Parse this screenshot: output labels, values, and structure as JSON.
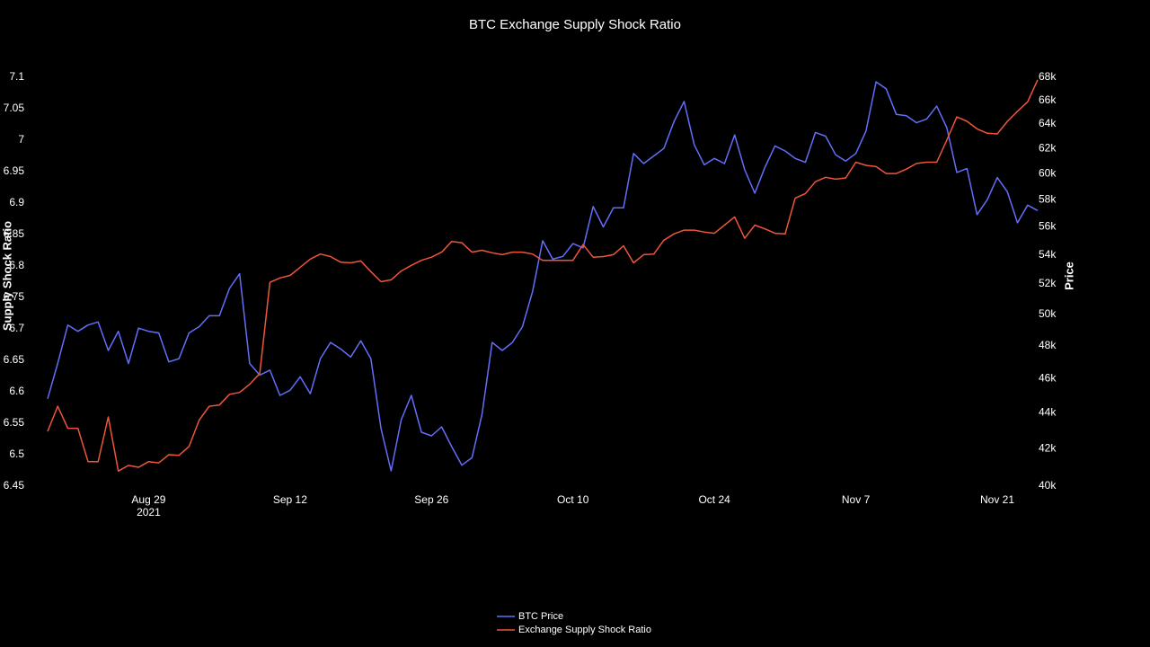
{
  "chart_data": {
    "type": "line",
    "title": "BTC Exchange Supply Shock Ratio",
    "y_label": "Supply Shock Ratio",
    "y2_label": "Price",
    "y2_log": true,
    "legend": "bottom",
    "x": [
      "2021-08-19",
      "2021-08-20",
      "2021-08-21",
      "2021-08-22",
      "2021-08-23",
      "2021-08-24",
      "2021-08-25",
      "2021-08-26",
      "2021-08-27",
      "2021-08-28",
      "2021-08-29",
      "2021-08-30",
      "2021-08-31",
      "2021-09-01",
      "2021-09-02",
      "2021-09-03",
      "2021-09-04",
      "2021-09-05",
      "2021-09-06",
      "2021-09-07",
      "2021-09-08",
      "2021-09-09",
      "2021-09-10",
      "2021-09-11",
      "2021-09-12",
      "2021-09-13",
      "2021-09-14",
      "2021-09-15",
      "2021-09-16",
      "2021-09-17",
      "2021-09-18",
      "2021-09-19",
      "2021-09-20",
      "2021-09-21",
      "2021-09-22",
      "2021-09-23",
      "2021-09-24",
      "2021-09-25",
      "2021-09-26",
      "2021-09-27",
      "2021-09-28",
      "2021-09-29",
      "2021-09-30",
      "2021-10-01",
      "2021-10-02",
      "2021-10-03",
      "2021-10-04",
      "2021-10-05",
      "2021-10-06",
      "2021-10-07",
      "2021-10-08",
      "2021-10-09",
      "2021-10-10",
      "2021-10-11",
      "2021-10-12",
      "2021-10-13",
      "2021-10-14",
      "2021-10-15",
      "2021-10-16",
      "2021-10-17",
      "2021-10-18",
      "2021-10-19",
      "2021-10-20",
      "2021-10-21",
      "2021-10-22",
      "2021-10-23",
      "2021-10-24",
      "2021-10-25",
      "2021-10-26",
      "2021-10-27",
      "2021-10-28",
      "2021-10-29",
      "2021-10-30",
      "2021-10-31",
      "2021-11-01",
      "2021-11-02",
      "2021-11-03",
      "2021-11-04",
      "2021-11-05",
      "2021-11-06",
      "2021-11-07",
      "2021-11-08",
      "2021-11-09",
      "2021-11-10",
      "2021-11-11",
      "2021-11-12",
      "2021-11-13",
      "2021-11-14",
      "2021-11-15",
      "2021-11-16",
      "2021-11-17",
      "2021-11-18",
      "2021-11-19",
      "2021-11-20",
      "2021-11-21",
      "2021-11-22",
      "2021-11-23",
      "2021-11-24",
      "2021-11-25"
    ],
    "xlim": [
      "2021-08-19",
      "2021-11-25"
    ],
    "xticks": [
      {
        "value": "2021-08-29",
        "label": "Aug 29\n2021"
      },
      {
        "value": "2021-09-12",
        "label": "Sep 12"
      },
      {
        "value": "2021-09-26",
        "label": "Sep 26"
      },
      {
        "value": "2021-10-10",
        "label": "Oct 10"
      },
      {
        "value": "2021-10-24",
        "label": "Oct 24"
      },
      {
        "value": "2021-11-07",
        "label": "Nov 7"
      },
      {
        "value": "2021-11-21",
        "label": "Nov 21"
      }
    ],
    "ylim": [
      6.45,
      7.1
    ],
    "yticks": [
      6.45,
      6.5,
      6.55,
      6.6,
      6.65,
      6.7,
      6.75,
      6.8,
      6.85,
      6.9,
      6.95,
      7,
      7.05,
      7.1
    ],
    "y2lim": [
      40000,
      68000
    ],
    "y2ticks": [
      {
        "value": 40000,
        "label": "40k"
      },
      {
        "value": 42000,
        "label": "42k"
      },
      {
        "value": 44000,
        "label": "44k"
      },
      {
        "value": 46000,
        "label": "46k"
      },
      {
        "value": 48000,
        "label": "48k"
      },
      {
        "value": 50000,
        "label": "50k"
      },
      {
        "value": 52000,
        "label": "52k"
      },
      {
        "value": 54000,
        "label": "54k"
      },
      {
        "value": 56000,
        "label": "56k"
      },
      {
        "value": 58000,
        "label": "58k"
      },
      {
        "value": 60000,
        "label": "60k"
      },
      {
        "value": 62000,
        "label": "62k"
      },
      {
        "value": 64000,
        "label": "64k"
      },
      {
        "value": 66000,
        "label": "66k"
      },
      {
        "value": 68000,
        "label": "68k"
      }
    ],
    "series": [
      {
        "name": "BTC Price",
        "color": "#636efa",
        "axis": "y2",
        "values": [
          44800,
          46900,
          49300,
          48900,
          49300,
          49500,
          47700,
          48900,
          46900,
          49100,
          48900,
          48800,
          47000,
          47200,
          48800,
          49200,
          49900,
          49900,
          51700,
          52700,
          46900,
          46200,
          46500,
          45000,
          45300,
          46100,
          45100,
          47200,
          48200,
          47800,
          47300,
          48300,
          47200,
          43100,
          40800,
          43600,
          45000,
          42900,
          42700,
          43200,
          42100,
          41100,
          41500,
          43900,
          48200,
          47700,
          48200,
          49200,
          51500,
          55000,
          53700,
          53900,
          54800,
          54500,
          57500,
          56000,
          57400,
          57400,
          61600,
          60800,
          61400,
          62000,
          64200,
          65900,
          62300,
          60700,
          61200,
          60800,
          63100,
          60300,
          58500,
          60500,
          62200,
          61800,
          61200,
          60900,
          63300,
          63000,
          61500,
          61000,
          61600,
          63400,
          67600,
          67000,
          64800,
          64700,
          64100,
          64400,
          65500,
          63700,
          60100,
          60400,
          56900,
          58000,
          59700,
          58600,
          56300,
          57600,
          57200
        ]
      },
      {
        "name": "Exchange Supply Shock Ratio",
        "color": "#ef553b",
        "values": [
          6.537,
          6.577,
          6.542,
          6.542,
          6.489,
          6.489,
          6.56,
          6.474,
          6.483,
          6.48,
          6.489,
          6.487,
          6.5,
          6.499,
          6.513,
          6.555,
          6.577,
          6.579,
          6.596,
          6.599,
          6.612,
          6.629,
          6.774,
          6.781,
          6.785,
          6.798,
          6.811,
          6.819,
          6.815,
          6.806,
          6.805,
          6.808,
          6.791,
          6.775,
          6.778,
          6.792,
          6.801,
          6.809,
          6.814,
          6.822,
          6.839,
          6.837,
          6.822,
          6.825,
          6.821,
          6.818,
          6.822,
          6.822,
          6.819,
          6.809,
          6.809,
          6.809,
          6.809,
          6.834,
          6.814,
          6.815,
          6.818,
          6.832,
          6.805,
          6.818,
          6.819,
          6.841,
          6.851,
          6.857,
          6.857,
          6.854,
          6.852,
          6.865,
          6.878,
          6.844,
          6.865,
          6.859,
          6.852,
          6.851,
          6.908,
          6.915,
          6.934,
          6.941,
          6.938,
          6.94,
          6.965,
          6.96,
          6.958,
          6.947,
          6.947,
          6.954,
          6.963,
          6.965,
          6.965,
          7.0,
          7.037,
          7.03,
          7.018,
          7.011,
          7.01,
          7.03,
          7.046,
          7.061,
          7.096
        ]
      }
    ]
  }
}
